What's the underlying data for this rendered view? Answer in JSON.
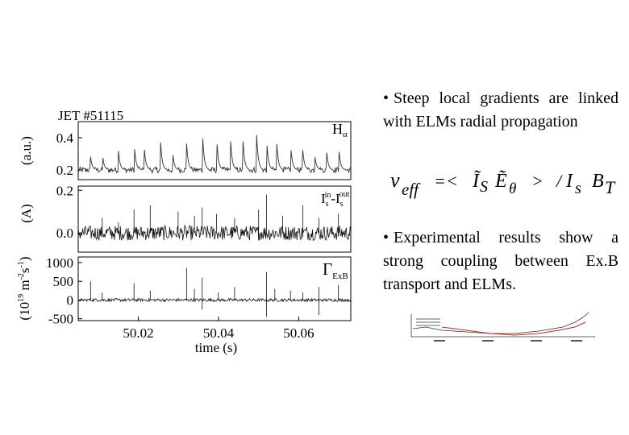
{
  "chart_data": [
    {
      "type": "line",
      "title": "JET #51115",
      "legend": "H",
      "legend_sub": "α",
      "ylabel": "(a.u.)",
      "yticks": [
        "0.4",
        "0.2"
      ],
      "ytick_values": [
        0.4,
        0.2
      ],
      "ylim": [
        0.14,
        0.5
      ],
      "xlim": [
        50.005,
        50.073
      ],
      "baseline": 0.2,
      "spikes": [
        {
          "x": 50.008,
          "y": 0.3
        },
        {
          "x": 50.011,
          "y": 0.31
        },
        {
          "x": 50.015,
          "y": 0.33
        },
        {
          "x": 50.019,
          "y": 0.36
        },
        {
          "x": 50.0215,
          "y": 0.33
        },
        {
          "x": 50.0255,
          "y": 0.4
        },
        {
          "x": 50.0285,
          "y": 0.33
        },
        {
          "x": 50.032,
          "y": 0.38
        },
        {
          "x": 50.036,
          "y": 0.44
        },
        {
          "x": 50.0395,
          "y": 0.43
        },
        {
          "x": 50.043,
          "y": 0.4
        },
        {
          "x": 50.046,
          "y": 0.44
        },
        {
          "x": 50.0495,
          "y": 0.43
        },
        {
          "x": 50.052,
          "y": 0.4
        },
        {
          "x": 50.0545,
          "y": 0.38
        },
        {
          "x": 50.058,
          "y": 0.36
        },
        {
          "x": 50.061,
          "y": 0.33
        },
        {
          "x": 50.064,
          "y": 0.3
        },
        {
          "x": 50.067,
          "y": 0.31
        },
        {
          "x": 50.07,
          "y": 0.34
        }
      ]
    },
    {
      "type": "line",
      "legend": "I",
      "legend_parts": [
        "s",
        "in",
        "-I",
        "s",
        "out"
      ],
      "ylabel": "(A)",
      "yticks": [
        "0.2",
        "0.0"
      ],
      "ytick_values": [
        0.2,
        0.0
      ],
      "ylim": [
        -0.09,
        0.22
      ],
      "xlim": [
        50.005,
        50.073
      ],
      "baseline": 0.0,
      "spikes": [
        {
          "x": 50.011,
          "y": 0.07
        },
        {
          "x": 50.015,
          "y": 0.05
        },
        {
          "x": 50.019,
          "y": 0.11
        },
        {
          "x": 50.023,
          "y": 0.13
        },
        {
          "x": 50.03,
          "y": 0.1
        },
        {
          "x": 50.034,
          "y": 0.08
        },
        {
          "x": 50.036,
          "y": 0.12
        },
        {
          "x": 50.0395,
          "y": 0.09
        },
        {
          "x": 50.044,
          "y": 0.07
        },
        {
          "x": 50.05,
          "y": 0.11
        },
        {
          "x": 50.052,
          "y": 0.18
        },
        {
          "x": 50.056,
          "y": 0.08
        },
        {
          "x": 50.061,
          "y": 0.13
        },
        {
          "x": 50.065,
          "y": 0.07
        },
        {
          "x": 50.07,
          "y": 0.09
        }
      ]
    },
    {
      "type": "line",
      "legend": "Γ",
      "legend_sub": "ExB",
      "ylabel_parts": [
        "(10",
        "19",
        " m",
        "-2",
        "s",
        "-1",
        ")"
      ],
      "yticks": [
        "1000",
        "500",
        "0",
        "-500"
      ],
      "ytick_values": [
        1000,
        500,
        0,
        -500
      ],
      "ylim": [
        -550,
        1150
      ],
      "xlim": [
        50.005,
        50.073
      ],
      "baseline": 0,
      "xticks": [
        "50.02",
        "50.04",
        "50.06"
      ],
      "xtick_values": [
        50.02,
        50.04,
        50.06
      ],
      "xlabel": "time (s)",
      "spikes": [
        {
          "x": 50.008,
          "y": 500
        },
        {
          "x": 50.011,
          "y": 200
        },
        {
          "x": 50.019,
          "y": 450
        },
        {
          "x": 50.023,
          "y": 250
        },
        {
          "x": 50.032,
          "y": 850
        },
        {
          "x": 50.034,
          "y": 300
        },
        {
          "x": 50.036,
          "y": 600
        },
        {
          "x": 50.036,
          "y": -250
        },
        {
          "x": 50.04,
          "y": 200
        },
        {
          "x": 50.044,
          "y": 350
        },
        {
          "x": 50.052,
          "y": 750
        },
        {
          "x": 50.052,
          "y": -450
        },
        {
          "x": 50.054,
          "y": 300
        },
        {
          "x": 50.058,
          "y": 250
        },
        {
          "x": 50.061,
          "y": 200
        },
        {
          "x": 50.065,
          "y": 350
        },
        {
          "x": 50.065,
          "y": -400
        },
        {
          "x": 50.07,
          "y": 400
        }
      ]
    }
  ],
  "bullets": {
    "first": "Steep local gradients are linked with ELMs radial propagation",
    "second": "Experimental results show a strong coupling between Ex.B transport and ELMs.",
    "dot": "•"
  },
  "formula": {
    "v": "v",
    "eff": "eff",
    "eq": "=<",
    "is1": "Ĩ",
    "s1": "S",
    "e": "Ẽ",
    "theta": "θ",
    "gt": ">",
    "slash": "/",
    "is2": "I",
    "s2": "s",
    "b": "B",
    "t": "T"
  },
  "colors": {
    "ink": "#000000",
    "trace": "#111111",
    "halpha": "#333333",
    "thumb_red": "#d02020"
  }
}
